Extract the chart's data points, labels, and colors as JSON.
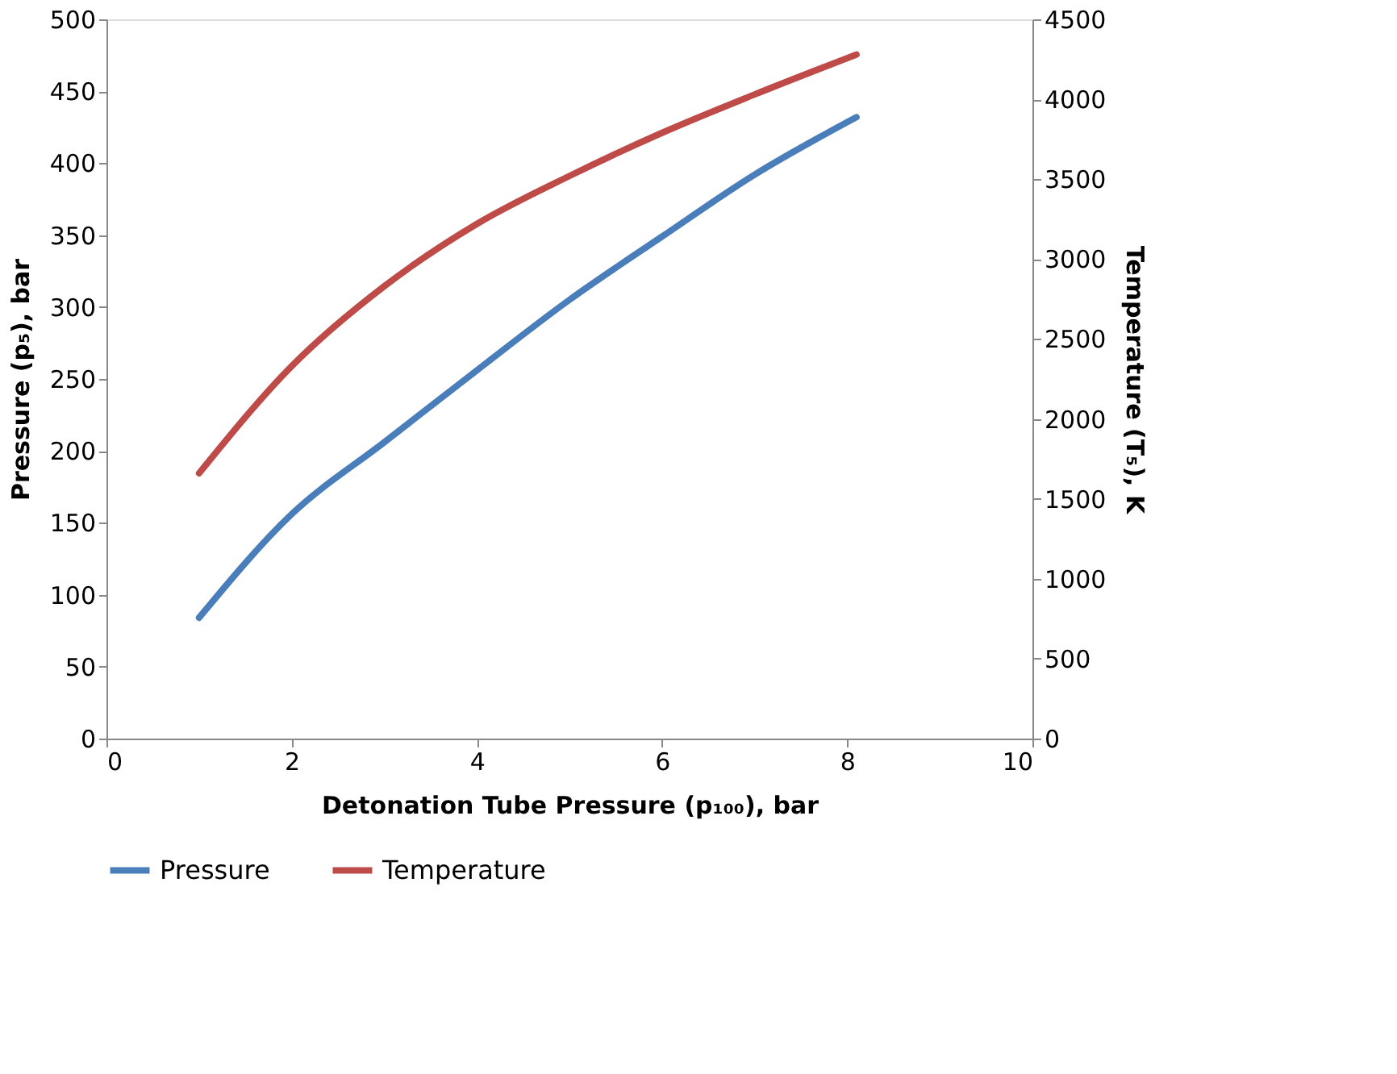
{
  "chart_data": {
    "type": "line",
    "xlabel": "Detonation Tube Pressure (p₁₀₀), bar",
    "ylabel": "Pressure (p₅), bar",
    "y2label": "Temperature (T₅), K",
    "xlim": [
      0,
      10
    ],
    "xticks": [
      0,
      2,
      4,
      6,
      8,
      10
    ],
    "ylim": [
      0,
      500
    ],
    "yticks": [
      0,
      50,
      100,
      150,
      200,
      250,
      300,
      350,
      400,
      450,
      500
    ],
    "y2lim": [
      0,
      4500
    ],
    "y2ticks": [
      0,
      500,
      1000,
      1500,
      2000,
      2500,
      3000,
      3500,
      4000,
      4500
    ],
    "grid": false,
    "legend": "bottom",
    "line_style": "solid",
    "marker": "none",
    "series": [
      {
        "name": "Pressure",
        "color": "#4a7ebb",
        "x": [
          1,
          2,
          3,
          4,
          5,
          6,
          7,
          8.1
        ],
        "values": [
          84,
          156,
          206,
          256,
          305,
          349,
          392,
          432
        ]
      },
      {
        "name": "Temperature",
        "color": "#be4b48",
        "axis": "y2",
        "x": [
          1,
          2,
          3,
          4,
          5,
          6,
          7,
          8.1
        ],
        "values": [
          1660,
          2330,
          2830,
          3220,
          3520,
          3790,
          4030,
          4280
        ]
      }
    ]
  }
}
